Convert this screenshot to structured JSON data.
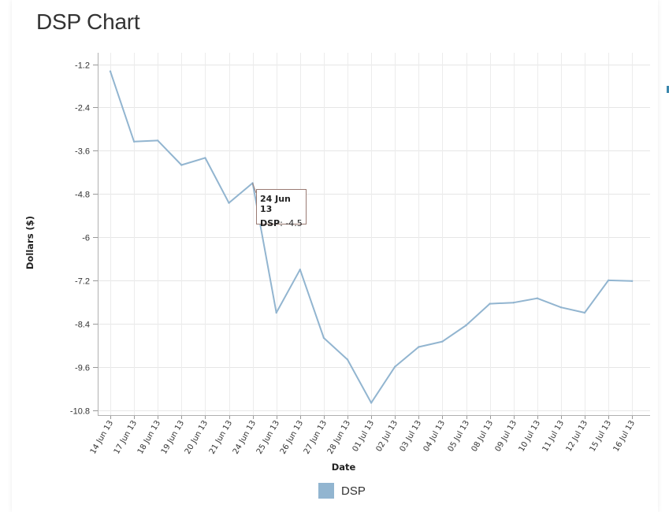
{
  "page": {
    "title": "DSP Chart"
  },
  "chart_data": {
    "type": "line",
    "title": "",
    "xlabel": "Date",
    "ylabel": "Dollars ($)",
    "ylim": [
      -10.8,
      -1.2
    ],
    "yticks": [
      "-1.2",
      "-2.4",
      "-3.6",
      "-4.8",
      "-6",
      "-7.2",
      "-8.4",
      "-9.6",
      "-10.8"
    ],
    "grid": true,
    "legend_position": "bottom-center",
    "x": [
      "14 Jun 13",
      "17 Jun 13",
      "18 Jun 13",
      "19 Jun 13",
      "20 Jun 13",
      "21 Jun 13",
      "24 Jun 13",
      "25 Jun 13",
      "26 Jun 13",
      "27 Jun 13",
      "28 Jun 13",
      "01 Jul 13",
      "02 Jul 13",
      "03 Jul 13",
      "04 Jul 13",
      "05 Jul 13",
      "08 Jul 13",
      "09 Jul 13",
      "10 Jul 13",
      "11 Jul 13",
      "12 Jul 13",
      "15 Jul 13",
      "16 Jul 13"
    ],
    "series": [
      {
        "name": "DSP",
        "color": "#92b5d0",
        "values": [
          -1.4,
          -3.35,
          -3.32,
          -4.0,
          -3.8,
          -5.05,
          -4.5,
          -8.1,
          -6.9,
          -8.8,
          -9.4,
          -10.6,
          -9.6,
          -9.05,
          -8.9,
          -8.45,
          -7.85,
          -7.82,
          -7.7,
          -7.95,
          -8.1,
          -7.2,
          -7.22
        ]
      }
    ],
    "tooltip": {
      "date": "24 Jun 13",
      "series": "DSP",
      "value": "-4.5"
    }
  }
}
